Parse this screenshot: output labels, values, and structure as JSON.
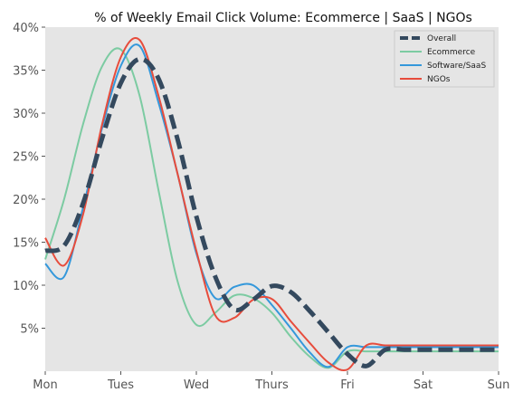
{
  "chart_data": {
    "type": "line",
    "title": "% of Weekly Email Click Volume: Ecommerce | SaaS | NGOs",
    "xlabel": "",
    "ylabel": "",
    "x_tick_labels": [
      "Mon",
      "Tues",
      "Wed",
      "Thurs",
      "Fri",
      "Sat",
      "Sun"
    ],
    "x_ticks": [
      0,
      1,
      2,
      3,
      4,
      5,
      6
    ],
    "xlim": [
      0,
      6
    ],
    "y_tick_labels": [
      "5%",
      "10%",
      "15%",
      "20%",
      "25%",
      "30%",
      "35%",
      "40%"
    ],
    "y_ticks": [
      5,
      10,
      15,
      20,
      25,
      30,
      35,
      40
    ],
    "ylim": [
      0,
      40
    ],
    "grid": false,
    "legend_position": "top-right",
    "x": [
      0,
      0.25,
      0.5,
      0.75,
      1,
      1.25,
      1.5,
      1.75,
      2,
      2.25,
      2.5,
      2.75,
      3,
      3.25,
      3.5,
      3.75,
      4,
      4.25,
      4.5,
      4.75,
      5,
      5.25,
      5.5,
      5.75,
      6
    ],
    "series": [
      {
        "name": "Overall",
        "color": "#34495e",
        "style": "dashed",
        "width": 5,
        "values": [
          14,
          14.6,
          19.5,
          27,
          33.5,
          36.3,
          34,
          27,
          18,
          11,
          7.2,
          8.3,
          9.9,
          9.2,
          7,
          4.5,
          2,
          0.6,
          2.5,
          2.5,
          2.5,
          2.5,
          2.5,
          2.5,
          2.5
        ]
      },
      {
        "name": "Ecommerce",
        "color": "#7ccba2",
        "style": "solid",
        "width": 2,
        "values": [
          13,
          20,
          28.7,
          35.4,
          37.4,
          32,
          21,
          10.5,
          5.4,
          6.8,
          8.8,
          8.5,
          6.8,
          4,
          1.7,
          0.4,
          2.3,
          2.3,
          2.3,
          2.3,
          2.3,
          2.3,
          2.3,
          2.3,
          2.3
        ]
      },
      {
        "name": "Software/SaaS",
        "color": "#3498db",
        "style": "solid",
        "width": 2,
        "values": [
          12.5,
          11,
          19,
          28.2,
          35.5,
          37.8,
          31.2,
          23,
          13.7,
          8.5,
          9.8,
          10,
          7.7,
          5,
          2.2,
          0.5,
          2.8,
          2.8,
          2.8,
          2.8,
          2.8,
          2.8,
          2.8,
          2.8,
          2.8
        ]
      },
      {
        "name": "NGOs",
        "color": "#e74c3c",
        "style": "solid",
        "width": 2,
        "values": [
          15.5,
          12.3,
          18.2,
          28.6,
          36.5,
          38.5,
          32,
          23,
          14,
          6.5,
          6.2,
          8.3,
          8.4,
          5.8,
          3.3,
          1,
          0.2,
          3,
          3,
          3,
          3,
          3,
          3,
          3,
          3
        ]
      }
    ]
  }
}
